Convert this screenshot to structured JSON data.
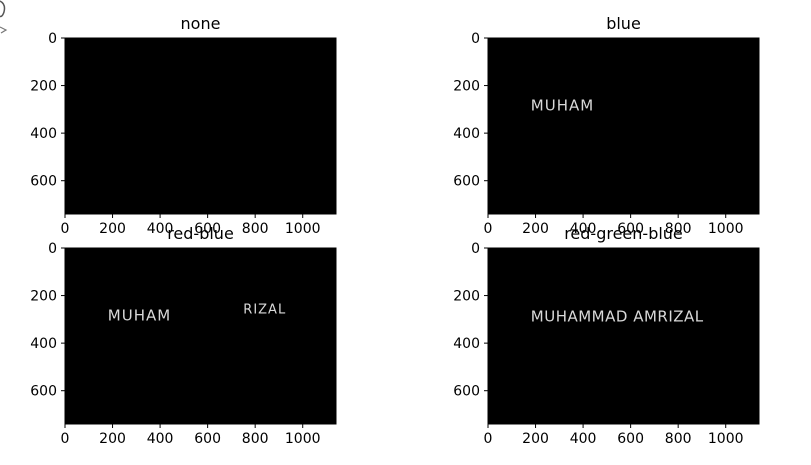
{
  "chart_data": [
    {
      "type": "image",
      "title": "none",
      "xlim": [
        0,
        1140
      ],
      "ylim": [
        740,
        0
      ],
      "xticks": [
        "0",
        "200",
        "400",
        "600",
        "800",
        "1000"
      ],
      "yticks": [
        "0",
        "200",
        "400",
        "600"
      ],
      "visible_strokes": []
    },
    {
      "type": "image",
      "title": "blue",
      "xlim": [
        0,
        1140
      ],
      "ylim": [
        740,
        0
      ],
      "xticks": [
        "0",
        "200",
        "400",
        "600",
        "800",
        "1000"
      ],
      "yticks": [
        "0",
        "200",
        "400",
        "600"
      ],
      "visible_strokes": [
        "MUHAM"
      ]
    },
    {
      "type": "image",
      "title": "red-blue",
      "xlim": [
        0,
        1140
      ],
      "ylim": [
        740,
        0
      ],
      "xticks": [
        "0",
        "200",
        "400",
        "600",
        "800",
        "1000"
      ],
      "yticks": [
        "0",
        "200",
        "400",
        "600"
      ],
      "visible_strokes": [
        "MUHAM",
        "RIZAL"
      ]
    },
    {
      "type": "image",
      "title": "red-green-blue",
      "xlim": [
        0,
        1140
      ],
      "ylim": [
        740,
        0
      ],
      "xticks": [
        "0",
        "200",
        "400",
        "600",
        "800",
        "1000"
      ],
      "yticks": [
        "0",
        "200",
        "400",
        "600"
      ],
      "visible_strokes": [
        "MUHAMMAD AMRIZAL"
      ]
    }
  ],
  "colors": {
    "image_bg": "#000000",
    "stroke": "#d9d9d9",
    "axis": "#000000"
  }
}
